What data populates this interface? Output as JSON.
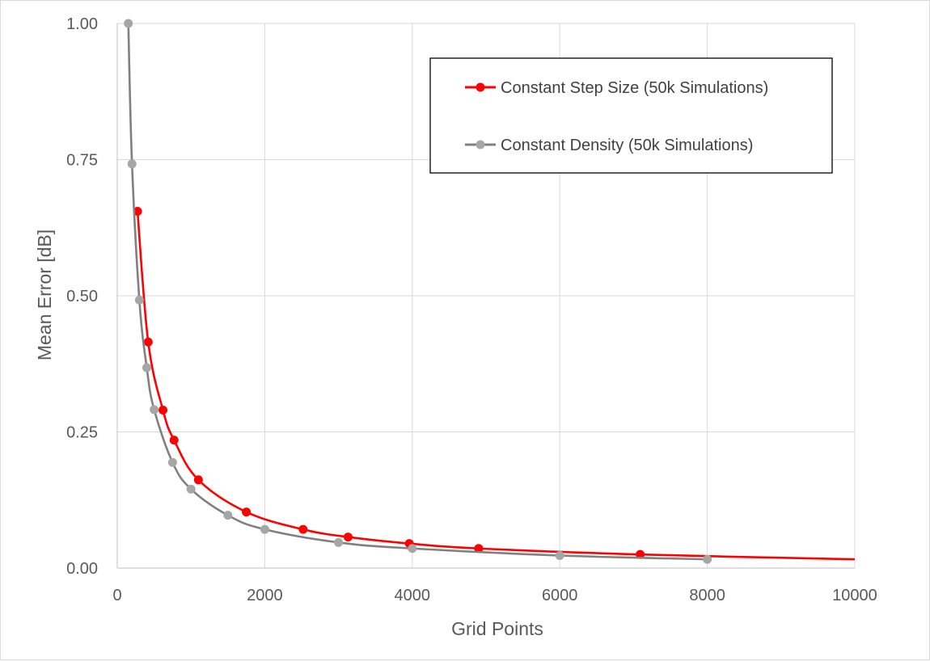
{
  "chart_data": {
    "type": "line",
    "title": "",
    "xlabel": "Grid Points",
    "ylabel": "Mean Error [dB]",
    "xlim": [
      0,
      10000
    ],
    "ylim": [
      0,
      1.0
    ],
    "x_ticks": [
      0,
      2000,
      4000,
      6000,
      8000,
      10000
    ],
    "y_ticks": [
      0.0,
      0.25,
      0.5,
      0.75,
      1.0
    ],
    "x_tick_labels": [
      "0",
      "2000",
      "4000",
      "6000",
      "8000",
      "10000"
    ],
    "y_tick_labels": [
      "0.00",
      "0.25",
      "0.50",
      "0.75",
      "1.00"
    ],
    "grid": true,
    "legend_position": "top-right",
    "series": [
      {
        "name": "Constant Step Size (50k Simulations)",
        "color": "#ff0000",
        "x": [
          275,
          420,
          620,
          770,
          1100,
          1750,
          2520,
          3130,
          3960,
          4900,
          7090,
          10000
        ],
        "y": [
          0.655,
          0.415,
          0.29,
          0.235,
          0.162,
          0.103,
          0.071,
          0.057,
          0.045,
          0.036,
          0.025,
          0.016
        ],
        "markers": [
          true,
          true,
          true,
          true,
          true,
          true,
          true,
          true,
          true,
          true,
          true,
          false
        ]
      },
      {
        "name": "Constant Density (50k Simulations)",
        "color": "#808080",
        "marker_color": "#a6a6a6",
        "x": [
          150,
          200,
          300,
          400,
          500,
          750,
          1000,
          1500,
          2000,
          3000,
          4000,
          6000,
          8000
        ],
        "y": [
          1.0,
          0.742,
          0.492,
          0.368,
          0.291,
          0.194,
          0.145,
          0.097,
          0.071,
          0.047,
          0.036,
          0.023,
          0.016
        ],
        "markers": [
          true,
          true,
          true,
          true,
          true,
          true,
          true,
          true,
          true,
          true,
          true,
          true,
          true
        ]
      }
    ]
  }
}
